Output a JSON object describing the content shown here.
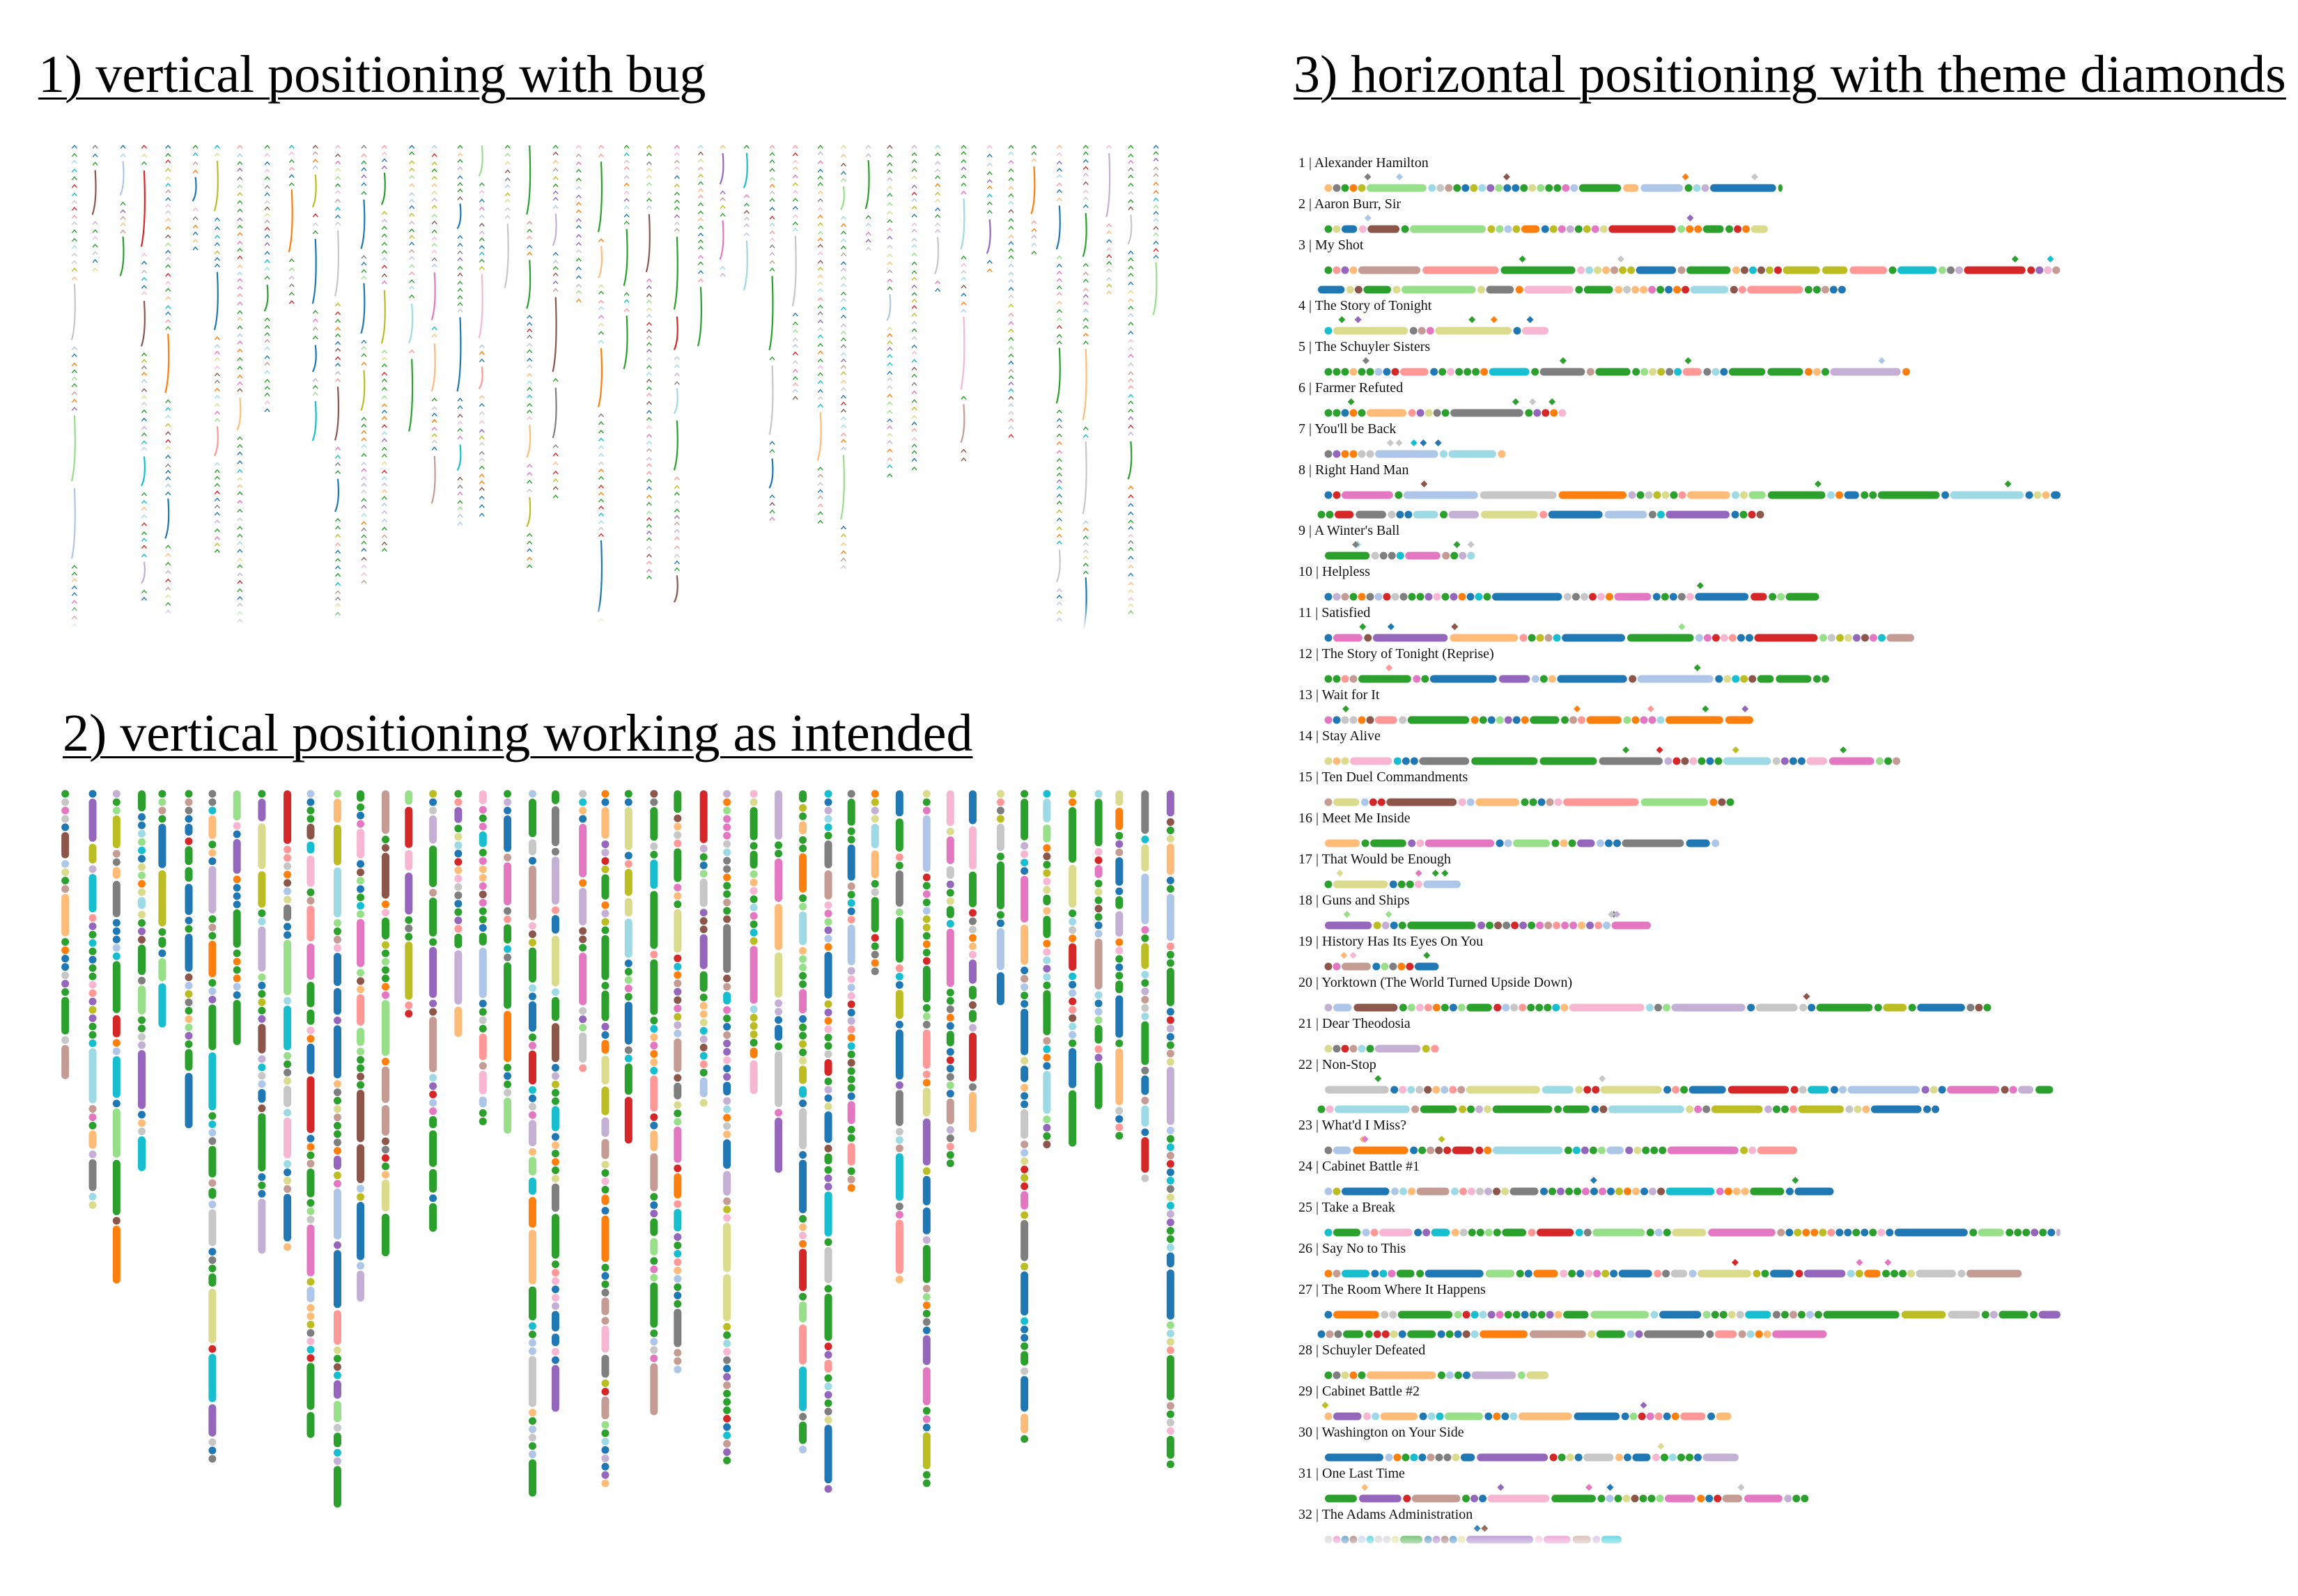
{
  "headings": {
    "h1": "1) vertical positioning with bug",
    "h2": "2) vertical positioning working as intended",
    "h3": "3) horizontal positioning with theme diamonds"
  },
  "colors": {
    "palette": [
      "#1f77b4",
      "#aec7e8",
      "#ff7f0e",
      "#ffbb78",
      "#2ca02c",
      "#98df8a",
      "#d62728",
      "#ff9896",
      "#9467bd",
      "#c5b0d5",
      "#8c564b",
      "#c49c94",
      "#e377c2",
      "#f7b6d2",
      "#7f7f7f",
      "#c7c7c7",
      "#bcbd22",
      "#dbdb8d",
      "#17becf",
      "#9edae5"
    ],
    "dominant": "#2ca02c"
  },
  "chart_data": [
    {
      "id": "panel-1",
      "type": "scatter",
      "title": "1) vertical positioning with bug",
      "orientation": "vertical",
      "column_count": 46
    },
    {
      "id": "panel-2",
      "type": "scatter",
      "title": "2) vertical positioning working as intended",
      "orientation": "vertical",
      "column_count": 46
    },
    {
      "id": "panel-3",
      "type": "scatter",
      "title": "3) horizontal positioning with theme diamonds",
      "orientation": "horizontal",
      "songs": [
        {
          "label": "1 | Alexander Hamilton",
          "lines": 1,
          "length": 0.62
        },
        {
          "label": "2 | Aaron Burr, Sir",
          "lines": 1,
          "length": 0.6
        },
        {
          "label": "3 | My Shot",
          "lines": 2,
          "length": 1.0
        },
        {
          "label": "4 | The Story of Tonight",
          "lines": 1,
          "length": 0.3
        },
        {
          "label": "5 | The Schuyler Sisters",
          "lines": 1,
          "length": 0.8
        },
        {
          "label": "6 | Farmer Refuted",
          "lines": 1,
          "length": 0.32
        },
        {
          "label": "7 | You'll be Back",
          "lines": 1,
          "length": 0.24
        },
        {
          "label": "8 | Right Hand Man",
          "lines": 2,
          "length": 1.0
        },
        {
          "label": "9 | A Winter's Ball",
          "lines": 1,
          "length": 0.2
        },
        {
          "label": "10 | Helpless",
          "lines": 1,
          "length": 0.67
        },
        {
          "label": "11 | Satisfied",
          "lines": 1,
          "length": 0.8
        },
        {
          "label": "12 | The Story of Tonight (Reprise)",
          "lines": 1,
          "length": 0.69
        },
        {
          "label": "13 | Wait for It",
          "lines": 1,
          "length": 0.58
        },
        {
          "label": "14 | Stay Alive",
          "lines": 1,
          "length": 0.78
        },
        {
          "label": "15 | Ten Duel Commandments",
          "lines": 1,
          "length": 0.56
        },
        {
          "label": "16 | Meet Me Inside",
          "lines": 1,
          "length": 0.54
        },
        {
          "label": "17 | That Would be Enough",
          "lines": 1,
          "length": 0.18
        },
        {
          "label": "18 | Guns and Ships",
          "lines": 1,
          "length": 0.44
        },
        {
          "label": "19 | History Has Its Eyes On You",
          "lines": 1,
          "length": 0.15
        },
        {
          "label": "20 | Yorktown (The World Turned Upside Down)",
          "lines": 1,
          "length": 0.91
        },
        {
          "label": "21 | Dear Theodosia",
          "lines": 1,
          "length": 0.15
        },
        {
          "label": "22 | Non-Stop",
          "lines": 2,
          "length": 0.99
        },
        {
          "label": "23 | What'd I Miss?",
          "lines": 1,
          "length": 0.64
        },
        {
          "label": "24 | Cabinet Battle #1",
          "lines": 1,
          "length": 0.69
        },
        {
          "label": "25 | Take a Break",
          "lines": 1,
          "length": 1.0
        },
        {
          "label": "26 | Say No to This",
          "lines": 1,
          "length": 0.95
        },
        {
          "label": "27 | The Room Where It Happens",
          "lines": 2,
          "length": 1.0
        },
        {
          "label": "28 | Schuyler Defeated",
          "lines": 1,
          "length": 0.3
        },
        {
          "label": "29 | Cabinet Battle #2",
          "lines": 1,
          "length": 0.55
        },
        {
          "label": "30 | Washington on Your Side",
          "lines": 1,
          "length": 0.56
        },
        {
          "label": "31 | One Last Time",
          "lines": 1,
          "length": 0.66
        },
        {
          "label": "32 | The Adams Administration",
          "lines": 1,
          "length": 0.4
        }
      ]
    }
  ]
}
